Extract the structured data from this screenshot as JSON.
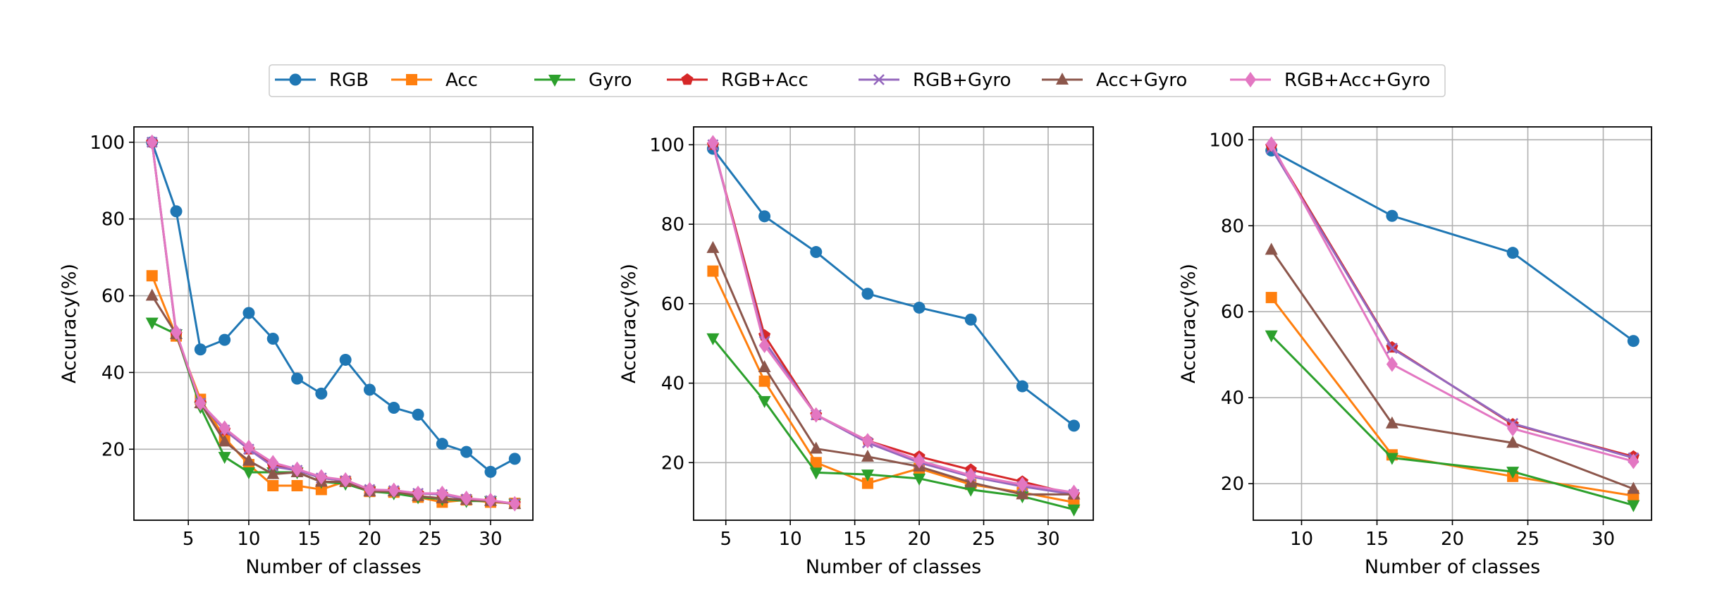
{
  "colors": {
    "RGB": "#1f77b4",
    "Acc": "#ff7f0e",
    "Gyro": "#2ca02c",
    "RGB+Acc": "#d62728",
    "RGB+Gyro": "#9467bd",
    "Acc+Gyro": "#8c564b",
    "RGB+Acc+Gyro": "#e377c2"
  },
  "legend": {
    "placement": "top-center",
    "entries": [
      {
        "name": "RGB",
        "marker": "circle"
      },
      {
        "name": "Acc",
        "marker": "square"
      },
      {
        "name": "Gyro",
        "marker": "triangle-down"
      },
      {
        "name": "RGB+Acc",
        "marker": "pentagon"
      },
      {
        "name": "RGB+Gyro",
        "marker": "x"
      },
      {
        "name": "Acc+Gyro",
        "marker": "triangle-up"
      },
      {
        "name": "RGB+Acc+Gyro",
        "marker": "diamond"
      }
    ]
  },
  "chart_data": [
    {
      "type": "line",
      "xlabel": "Number of classes",
      "ylabel": "Accuracy(%)",
      "xlim": [
        0.5,
        33.5
      ],
      "ylim": [
        1.5,
        104
      ],
      "xticks": [
        5,
        10,
        15,
        20,
        25,
        30
      ],
      "yticks": [
        20,
        40,
        60,
        80,
        100
      ],
      "grid": true,
      "x": [
        2,
        4,
        6,
        8,
        10,
        12,
        14,
        16,
        18,
        20,
        22,
        24,
        26,
        28,
        30,
        32
      ],
      "series": [
        {
          "name": "RGB",
          "values": [
            100,
            82,
            46,
            48.5,
            55.5,
            48.8,
            38.4,
            34.5,
            43.3,
            35.5,
            30.8,
            29,
            21.4,
            19.3,
            14.1,
            17.5
          ]
        },
        {
          "name": "Acc",
          "values": [
            65.2,
            49.5,
            33,
            23,
            16,
            10.5,
            10.5,
            9.5,
            11.6,
            9,
            8.8,
            7.5,
            6.2,
            6.8,
            6.2,
            5.9
          ]
        },
        {
          "name": "Gyro",
          "values": [
            53,
            50,
            31,
            18,
            14,
            14,
            14,
            11.5,
            11,
            9,
            8.5,
            7.5,
            7,
            6.5,
            6.5,
            5.8
          ]
        },
        {
          "name": "RGB+Acc",
          "values": [
            100,
            50,
            32,
            25,
            20,
            15.8,
            14.5,
            12.5,
            11.8,
            9.5,
            9.2,
            8.5,
            8.2,
            7,
            6.6,
            5.8
          ]
        },
        {
          "name": "RGB+Gyro",
          "values": [
            100,
            50,
            32,
            25,
            20,
            15.5,
            14.5,
            12.5,
            11.8,
            9.5,
            9.2,
            8.5,
            8.2,
            7,
            6.6,
            5.8
          ]
        },
        {
          "name": "Acc+Gyro",
          "values": [
            60,
            50,
            32,
            22,
            17,
            13.5,
            14,
            11.5,
            11.5,
            9,
            9,
            7.8,
            7.2,
            6.8,
            6.5,
            5.7
          ]
        },
        {
          "name": "RGB+Acc+Gyro",
          "values": [
            100,
            50.5,
            32,
            25.5,
            20.5,
            16.5,
            14.8,
            12.8,
            12,
            9.5,
            9.3,
            8.5,
            8.5,
            7.2,
            6.7,
            5.8
          ]
        }
      ]
    },
    {
      "type": "line",
      "xlabel": "Number of classes",
      "ylabel": "Accuracy(%)",
      "xlim": [
        2.5,
        33.5
      ],
      "ylim": [
        5.5,
        104.5
      ],
      "xticks": [
        5,
        10,
        15,
        20,
        25,
        30
      ],
      "yticks": [
        20,
        40,
        60,
        80,
        100
      ],
      "grid": true,
      "x": [
        4,
        8,
        12,
        16,
        20,
        24,
        28,
        32
      ],
      "series": [
        {
          "name": "RGB",
          "values": [
            99,
            82,
            73,
            62.5,
            59,
            56,
            39.2,
            29.3
          ]
        },
        {
          "name": "Acc",
          "values": [
            68.2,
            40.5,
            20,
            14.8,
            18.5,
            14.5,
            12.5,
            10
          ]
        },
        {
          "name": "Gyro",
          "values": [
            51.3,
            35.5,
            17.5,
            17,
            16,
            13.2,
            11.5,
            8.2
          ]
        },
        {
          "name": "RGB+Acc",
          "values": [
            100,
            52,
            32,
            25.5,
            21.5,
            18.2,
            15.2,
            12
          ]
        },
        {
          "name": "RGB+Gyro",
          "values": [
            100,
            50.5,
            32,
            25,
            20,
            16.5,
            14,
            12
          ]
        },
        {
          "name": "Acc+Gyro",
          "values": [
            74,
            44,
            23.5,
            21.5,
            19,
            15,
            12,
            12
          ]
        },
        {
          "name": "RGB+Acc+Gyro",
          "values": [
            100.5,
            49.5,
            32,
            25.5,
            20.5,
            16.8,
            14.5,
            12.5
          ]
        }
      ]
    },
    {
      "type": "line",
      "xlabel": "Number of classes",
      "ylabel": "Accuracy(%)",
      "xlim": [
        6.8,
        33.2
      ],
      "ylim": [
        11.5,
        103
      ],
      "xticks": [
        10,
        15,
        20,
        25,
        30
      ],
      "yticks": [
        20,
        40,
        60,
        80,
        100
      ],
      "grid": true,
      "x": [
        8,
        16,
        24,
        32
      ],
      "series": [
        {
          "name": "RGB",
          "values": [
            97.5,
            82.3,
            73.7,
            53.2
          ]
        },
        {
          "name": "Acc",
          "values": [
            63.3,
            26.7,
            21.7,
            17.2
          ]
        },
        {
          "name": "Gyro",
          "values": [
            54.5,
            26,
            22.8,
            15
          ]
        },
        {
          "name": "RGB+Acc",
          "values": [
            98.5,
            51.7,
            33.8,
            26.3
          ]
        },
        {
          "name": "RGB+Gyro",
          "values": [
            98,
            51.5,
            34,
            26
          ]
        },
        {
          "name": "Acc+Gyro",
          "values": [
            74.4,
            34,
            29.5,
            18.8
          ]
        },
        {
          "name": "RGB+Acc+Gyro",
          "values": [
            99,
            47.8,
            32.8,
            25.2
          ]
        }
      ]
    }
  ]
}
